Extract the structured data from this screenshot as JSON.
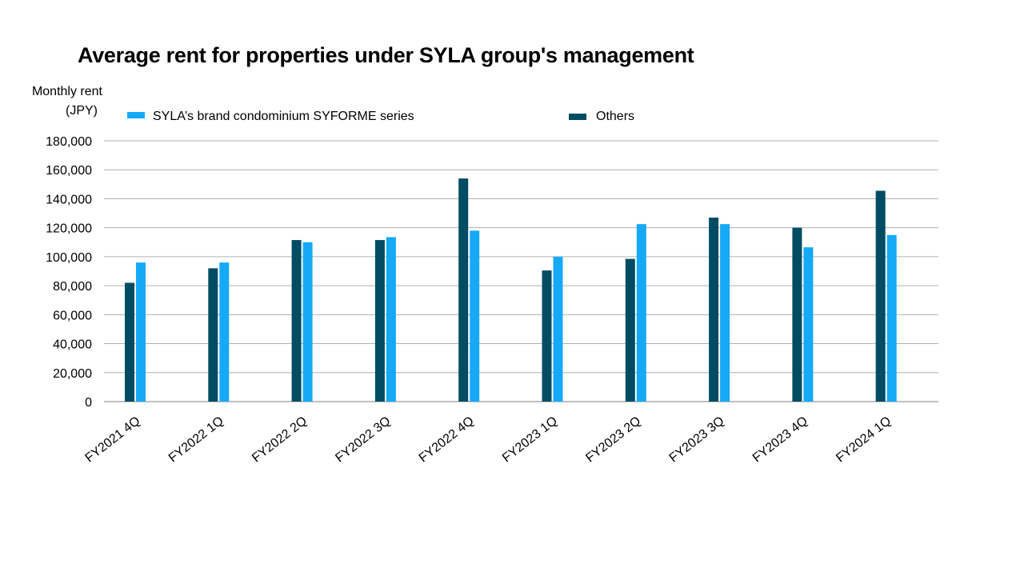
{
  "chart_data": {
    "type": "bar",
    "title": "Average rent for properties under SYLA group's management",
    "ylabel": [
      "Monthly rent",
      "(JPY)"
    ],
    "xlabel": "",
    "ylim": [
      0,
      180000
    ],
    "yticks": [
      0,
      20000,
      40000,
      60000,
      80000,
      100000,
      120000,
      140000,
      160000,
      180000
    ],
    "ytick_labels": [
      "0",
      "20,000",
      "40,000",
      "60,000",
      "80,000",
      "100,000",
      "120,000",
      "140,000",
      "160,000",
      "180,000"
    ],
    "grid": true,
    "legend_position": "top",
    "categories": [
      "FY2021 4Q",
      "FY2022 1Q",
      "FY2022 2Q",
      "FY2022 3Q",
      "FY2022 4Q",
      "FY2023 1Q",
      "FY2023 2Q",
      "FY2023 3Q",
      "FY2023 4Q",
      "FY2024 1Q"
    ],
    "series": [
      {
        "name": "Others",
        "color": "#004C63",
        "values": [
          82000,
          92000,
          111500,
          111500,
          154000,
          90500,
          98500,
          127000,
          120000,
          145500
        ]
      },
      {
        "name": "SYLA’s brand condominium SYFORME series",
        "color": "#16A9F7",
        "values": [
          96000,
          96000,
          110000,
          113500,
          118000,
          100000,
          122500,
          122500,
          106500,
          115000
        ]
      }
    ],
    "legend": [
      {
        "label": "SYLA’s brand condominium SYFORME series",
        "color": "#16A9F7"
      },
      {
        "label": "Others",
        "color": "#004C63"
      }
    ]
  }
}
